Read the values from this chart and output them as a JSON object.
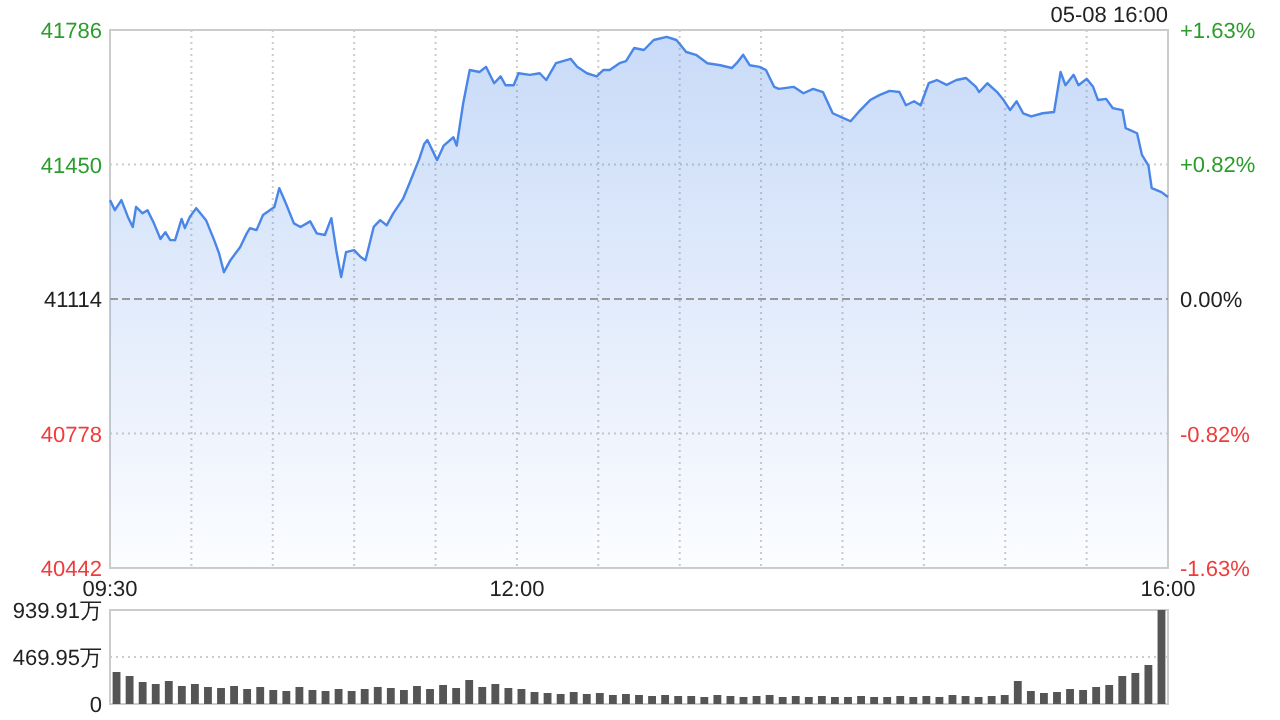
{
  "chart_data": [
    {
      "type": "area",
      "annotations": [
        "05-08 16:00"
      ],
      "series": [
        {
          "color": "#4a86e8",
          "x": [
            9.5,
            9.53,
            9.57,
            9.61,
            9.64,
            9.66,
            9.7,
            9.73,
            9.77,
            9.81,
            9.84,
            9.87,
            9.9,
            9.94,
            9.96,
            9.99,
            10.03,
            10.09,
            10.14,
            10.17,
            10.2,
            10.24,
            10.3,
            10.34,
            10.36,
            10.4,
            10.44,
            10.51,
            10.54,
            10.58,
            10.63,
            10.67,
            10.73,
            10.77,
            10.82,
            10.86,
            10.89,
            10.92,
            10.95,
            11.0,
            11.04,
            11.07,
            11.12,
            11.16,
            11.2,
            11.24,
            11.3,
            11.34,
            11.4,
            11.43,
            11.45,
            11.51,
            11.55,
            11.61,
            11.63,
            11.67,
            11.71,
            11.77,
            11.81,
            11.86,
            11.9,
            11.93,
            11.98,
            12.01,
            12.08,
            12.14,
            12.18,
            12.24,
            12.33,
            12.37,
            12.43,
            12.49,
            12.53,
            12.57,
            12.63,
            12.67,
            12.72,
            12.78,
            12.84,
            12.92,
            12.98,
            13.04,
            13.1,
            13.17,
            13.25,
            13.32,
            13.35,
            13.39,
            13.43,
            13.49,
            13.53,
            13.58,
            13.61,
            13.7,
            13.76,
            13.82,
            13.88,
            13.94,
            14.01,
            14.05,
            14.11,
            14.17,
            14.23,
            14.29,
            14.35,
            14.39,
            14.44,
            14.48,
            14.53,
            14.58,
            14.64,
            14.7,
            14.76,
            14.82,
            14.84,
            14.89,
            14.95,
            14.99,
            15.03,
            15.07,
            15.11,
            15.16,
            15.23,
            15.3,
            15.34,
            15.37,
            15.42,
            15.45,
            15.5,
            15.54,
            15.57,
            15.62,
            15.66,
            15.72,
            15.74,
            15.81,
            15.84,
            15.88,
            15.9,
            15.96,
            16.0
          ],
          "values": [
            41361,
            41336,
            41361,
            41319,
            41294,
            41344,
            41328,
            41336,
            41303,
            41264,
            41281,
            41261,
            41261,
            41314,
            41291,
            41319,
            41341,
            41311,
            41261,
            41228,
            41181,
            41211,
            41244,
            41278,
            41291,
            41286,
            41324,
            41344,
            41391,
            41353,
            41303,
            41294,
            41308,
            41278,
            41274,
            41316,
            41236,
            41169,
            41231,
            41236,
            41219,
            41211,
            41294,
            41311,
            41298,
            41328,
            41364,
            41403,
            41464,
            41501,
            41511,
            41461,
            41497,
            41518,
            41497,
            41603,
            41686,
            41681,
            41694,
            41653,
            41670,
            41648,
            41648,
            41678,
            41674,
            41678,
            41661,
            41703,
            41714,
            41694,
            41678,
            41670,
            41686,
            41686,
            41703,
            41708,
            41741,
            41736,
            41761,
            41769,
            41761,
            41731,
            41724,
            41703,
            41698,
            41691,
            41703,
            41724,
            41698,
            41694,
            41686,
            41644,
            41639,
            41644,
            41628,
            41639,
            41631,
            41578,
            41565,
            41558,
            41586,
            41611,
            41624,
            41634,
            41631,
            41598,
            41608,
            41598,
            41653,
            41661,
            41649,
            41661,
            41666,
            41644,
            41631,
            41653,
            41631,
            41611,
            41586,
            41608,
            41578,
            41570,
            41578,
            41581,
            41681,
            41648,
            41674,
            41648,
            41664,
            41644,
            41611,
            41614,
            41591,
            41586,
            41541,
            41528,
            41474,
            41447,
            41391,
            41381,
            41369
          ]
        }
      ],
      "xlim": [
        9.5,
        16
      ],
      "xticks": [
        {
          "value": 9.5,
          "label": "09:30"
        },
        {
          "value": 10,
          "label": null
        },
        {
          "value": 10.5,
          "label": null
        },
        {
          "value": 11,
          "label": null
        },
        {
          "value": 11.5,
          "label": null
        },
        {
          "value": 12,
          "label": "12:00"
        },
        {
          "value": 12.5,
          "label": null
        },
        {
          "value": 13,
          "label": null
        },
        {
          "value": 13.5,
          "label": null
        },
        {
          "value": 14,
          "label": null
        },
        {
          "value": 14.5,
          "label": null
        },
        {
          "value": 15,
          "label": null
        },
        {
          "value": 15.5,
          "label": null
        },
        {
          "value": 16,
          "label": "16:00"
        }
      ],
      "ylim": [
        40442,
        41786
      ],
      "yticks": [
        40442,
        40778,
        41114,
        41450,
        41786
      ],
      "y2lim": [
        -1.63,
        1.63
      ],
      "y2ticks": [
        {
          "value": -1.63,
          "label": "-1.63%"
        },
        {
          "value": -0.82,
          "label": "-0.82%"
        },
        {
          "value": 0,
          "label": "0.00%"
        },
        {
          "value": 0.82,
          "label": "+0.82%"
        },
        {
          "value": 1.63,
          "label": "+1.63%"
        }
      ],
      "grid": true,
      "ref_lines": [
        {
          "axis": "y",
          "value": 41114,
          "color": "#999999",
          "line_style": "dashed"
        }
      ]
    },
    {
      "type": "bar",
      "color": "#555555",
      "categories": [
        null,
        null,
        null,
        null,
        null,
        null,
        null,
        null,
        null,
        null,
        null,
        null,
        null,
        null,
        null,
        null,
        null,
        null,
        null,
        null,
        null,
        null,
        null,
        null,
        null,
        null,
        null,
        null,
        null,
        null,
        null,
        null,
        null,
        null,
        null,
        null,
        null,
        null,
        null,
        null,
        null,
        null,
        null,
        null,
        null,
        null,
        null,
        null,
        null,
        null,
        null,
        null,
        null,
        null,
        null,
        null,
        null,
        null,
        null,
        null,
        null,
        null,
        null,
        null,
        null,
        null,
        null,
        null,
        null,
        null,
        null,
        null,
        null,
        null,
        null,
        null,
        null,
        null,
        null,
        null,
        null
      ],
      "values": [
        320,
        280,
        220,
        200,
        230,
        180,
        200,
        170,
        160,
        180,
        150,
        170,
        140,
        130,
        170,
        140,
        130,
        150,
        130,
        150,
        170,
        160,
        140,
        180,
        150,
        190,
        160,
        240,
        170,
        200,
        160,
        150,
        120,
        110,
        100,
        120,
        100,
        110,
        90,
        100,
        90,
        80,
        90,
        80,
        80,
        70,
        90,
        80,
        70,
        80,
        90,
        70,
        80,
        70,
        80,
        70,
        70,
        80,
        70,
        70,
        80,
        70,
        80,
        70,
        90,
        80,
        70,
        80,
        90,
        230,
        130,
        110,
        120,
        150,
        140,
        170,
        190,
        280,
        310,
        390,
        939.91
      ],
      "ylim": [
        0,
        939.91
      ],
      "yticks": [
        0,
        {
          "value": 469.95,
          "label": "469.95万"
        },
        {
          "value": 939.91,
          "label": "939.91万"
        }
      ],
      "grid": "y",
      "tick_labels": "y"
    }
  ]
}
